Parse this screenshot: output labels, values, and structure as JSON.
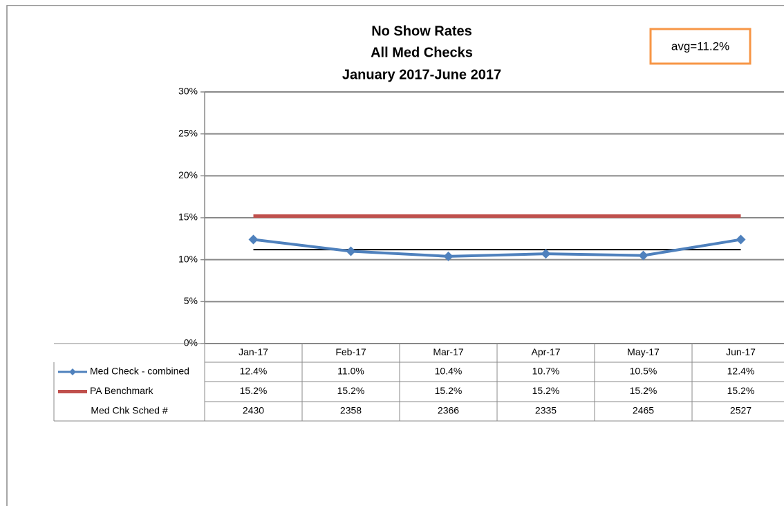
{
  "chart_data": {
    "type": "line",
    "title": "No Show Rates",
    "subtitle": [
      "All Med Checks",
      "January 2017-June 2017"
    ],
    "categories": [
      "Jan-17",
      "Feb-17",
      "Mar-17",
      "Apr-17",
      "May-17",
      "Jun-17"
    ],
    "series": [
      {
        "name": "Med Check - combined",
        "color": "#4f81bd",
        "marker": "diamond",
        "values": [
          12.4,
          11.0,
          10.4,
          10.7,
          10.5,
          12.4
        ],
        "value_labels": [
          "12.4%",
          "11.0%",
          "10.4%",
          "10.7%",
          "10.5%",
          "12.4%"
        ]
      },
      {
        "name": "PA Benchmark",
        "color": "#c0504d",
        "marker": "none",
        "values": [
          15.2,
          15.2,
          15.2,
          15.2,
          15.2,
          15.2
        ],
        "value_labels": [
          "15.2%",
          "15.2%",
          "15.2%",
          "15.2%",
          "15.2%",
          "15.2%"
        ]
      }
    ],
    "table_rows": [
      {
        "name": "Med Chk Sched #",
        "values": [
          2430,
          2358,
          2366,
          2335,
          2465,
          2527
        ]
      }
    ],
    "annotation": {
      "value": 11.2,
      "label": "avg=11.2%",
      "color": "#000000",
      "box_color": "#f79646"
    },
    "ylim": [
      0,
      30
    ],
    "yticks": [
      {
        "value": 0,
        "label": "0%"
      },
      {
        "value": 5,
        "label": "5%"
      },
      {
        "value": 10,
        "label": "10%"
      },
      {
        "value": 15,
        "label": "15%"
      },
      {
        "value": 20,
        "label": "20%"
      },
      {
        "value": 25,
        "label": "25%"
      },
      {
        "value": 30,
        "label": "30%"
      }
    ],
    "grid": true
  }
}
